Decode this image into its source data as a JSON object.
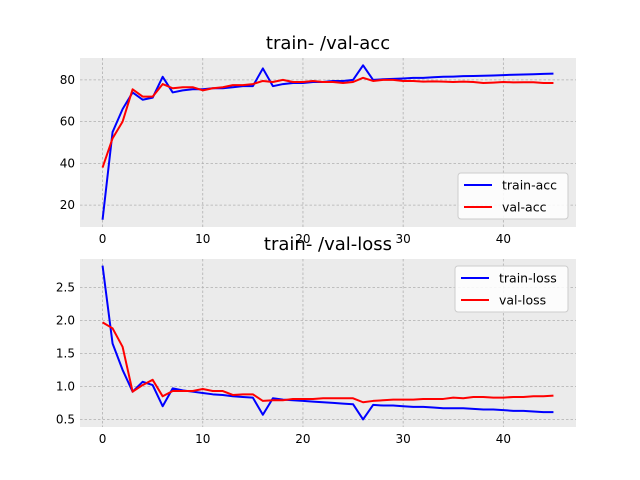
{
  "chart_data": [
    {
      "type": "line",
      "title": "train- /val-acc",
      "xlim": [
        -2.25,
        47.25
      ],
      "ylim": [
        9.5,
        90.5
      ],
      "xticks": [
        0,
        10,
        20,
        30,
        40
      ],
      "yticks": [
        20,
        40,
        60,
        80
      ],
      "grid": true,
      "legend_position": "lower right",
      "series": [
        {
          "name": "train-acc",
          "color": "#0000ff",
          "x": [
            0,
            1,
            2,
            3,
            4,
            5,
            6,
            7,
            8,
            9,
            10,
            11,
            12,
            13,
            14,
            15,
            16,
            17,
            18,
            19,
            20,
            21,
            22,
            23,
            24,
            25,
            26,
            27,
            28,
            29,
            30,
            31,
            32,
            33,
            34,
            35,
            36,
            37,
            38,
            39,
            40,
            41,
            42,
            43,
            44,
            45
          ],
          "values": [
            13,
            55,
            66,
            74,
            70.5,
            71.5,
            81.5,
            74,
            75,
            75.5,
            75.5,
            76,
            76,
            76.5,
            77,
            77,
            85.5,
            77,
            78,
            78.5,
            78.5,
            79,
            79,
            79.5,
            79.5,
            80,
            87,
            80,
            80.3,
            80.5,
            80.7,
            81,
            81,
            81.3,
            81.5,
            81.6,
            81.8,
            81.9,
            82,
            82.1,
            82.3,
            82.5,
            82.6,
            82.7,
            82.9,
            83
          ]
        },
        {
          "name": "val-acc",
          "color": "#ff0000",
          "x": [
            0,
            1,
            2,
            3,
            4,
            5,
            6,
            7,
            8,
            9,
            10,
            11,
            12,
            13,
            14,
            15,
            16,
            17,
            18,
            19,
            20,
            21,
            22,
            23,
            24,
            25,
            26,
            27,
            28,
            29,
            30,
            31,
            32,
            33,
            34,
            35,
            36,
            37,
            38,
            39,
            40,
            41,
            42,
            43,
            44,
            45
          ],
          "values": [
            38,
            52,
            60,
            75.5,
            72,
            72,
            78,
            76,
            76.5,
            76.5,
            75,
            76,
            76.5,
            77.5,
            77.5,
            78,
            79.5,
            79,
            80,
            79,
            79,
            79.5,
            79,
            79,
            78.5,
            79,
            81,
            79.5,
            80,
            80,
            79.5,
            79.5,
            79.2,
            79.3,
            79.2,
            79,
            79.2,
            79,
            78.5,
            78.7,
            79,
            78.8,
            78.9,
            78.9,
            78.5,
            78.5
          ]
        }
      ]
    },
    {
      "type": "line",
      "title": "train- /val-loss",
      "xlim": [
        -2.25,
        47.25
      ],
      "ylim": [
        0.385,
        2.93
      ],
      "xticks": [
        0,
        10,
        20,
        30,
        40
      ],
      "yticks": [
        0.5,
        1.0,
        1.5,
        2.0,
        2.5
      ],
      "grid": true,
      "legend_position": "upper right",
      "series": [
        {
          "name": "train-loss",
          "color": "#0000ff",
          "x": [
            0,
            1,
            2,
            3,
            4,
            5,
            6,
            7,
            8,
            9,
            10,
            11,
            12,
            13,
            14,
            15,
            16,
            17,
            18,
            19,
            20,
            21,
            22,
            23,
            24,
            25,
            26,
            27,
            28,
            29,
            30,
            31,
            32,
            33,
            34,
            35,
            36,
            37,
            38,
            39,
            40,
            41,
            42,
            43,
            44,
            45
          ],
          "values": [
            2.83,
            1.65,
            1.25,
            0.92,
            1.07,
            1.02,
            0.7,
            0.97,
            0.94,
            0.92,
            0.9,
            0.88,
            0.87,
            0.85,
            0.84,
            0.83,
            0.57,
            0.82,
            0.8,
            0.79,
            0.78,
            0.77,
            0.76,
            0.75,
            0.74,
            0.73,
            0.5,
            0.72,
            0.71,
            0.71,
            0.7,
            0.69,
            0.69,
            0.68,
            0.67,
            0.67,
            0.67,
            0.66,
            0.65,
            0.65,
            0.64,
            0.63,
            0.63,
            0.62,
            0.61,
            0.61
          ]
        },
        {
          "name": "val-loss",
          "color": "#ff0000",
          "x": [
            0,
            1,
            2,
            3,
            4,
            5,
            6,
            7,
            8,
            9,
            10,
            11,
            12,
            13,
            14,
            15,
            16,
            17,
            18,
            19,
            20,
            21,
            22,
            23,
            24,
            25,
            26,
            27,
            28,
            29,
            30,
            31,
            32,
            33,
            34,
            35,
            36,
            37,
            38,
            39,
            40,
            41,
            42,
            43,
            44,
            45
          ],
          "values": [
            1.97,
            1.88,
            1.6,
            0.92,
            1.02,
            1.1,
            0.85,
            0.93,
            0.93,
            0.93,
            0.96,
            0.93,
            0.93,
            0.87,
            0.88,
            0.88,
            0.78,
            0.79,
            0.79,
            0.81,
            0.81,
            0.81,
            0.82,
            0.82,
            0.82,
            0.82,
            0.76,
            0.78,
            0.79,
            0.8,
            0.8,
            0.8,
            0.81,
            0.81,
            0.81,
            0.83,
            0.82,
            0.84,
            0.84,
            0.83,
            0.83,
            0.84,
            0.84,
            0.85,
            0.85,
            0.86
          ]
        }
      ]
    }
  ]
}
